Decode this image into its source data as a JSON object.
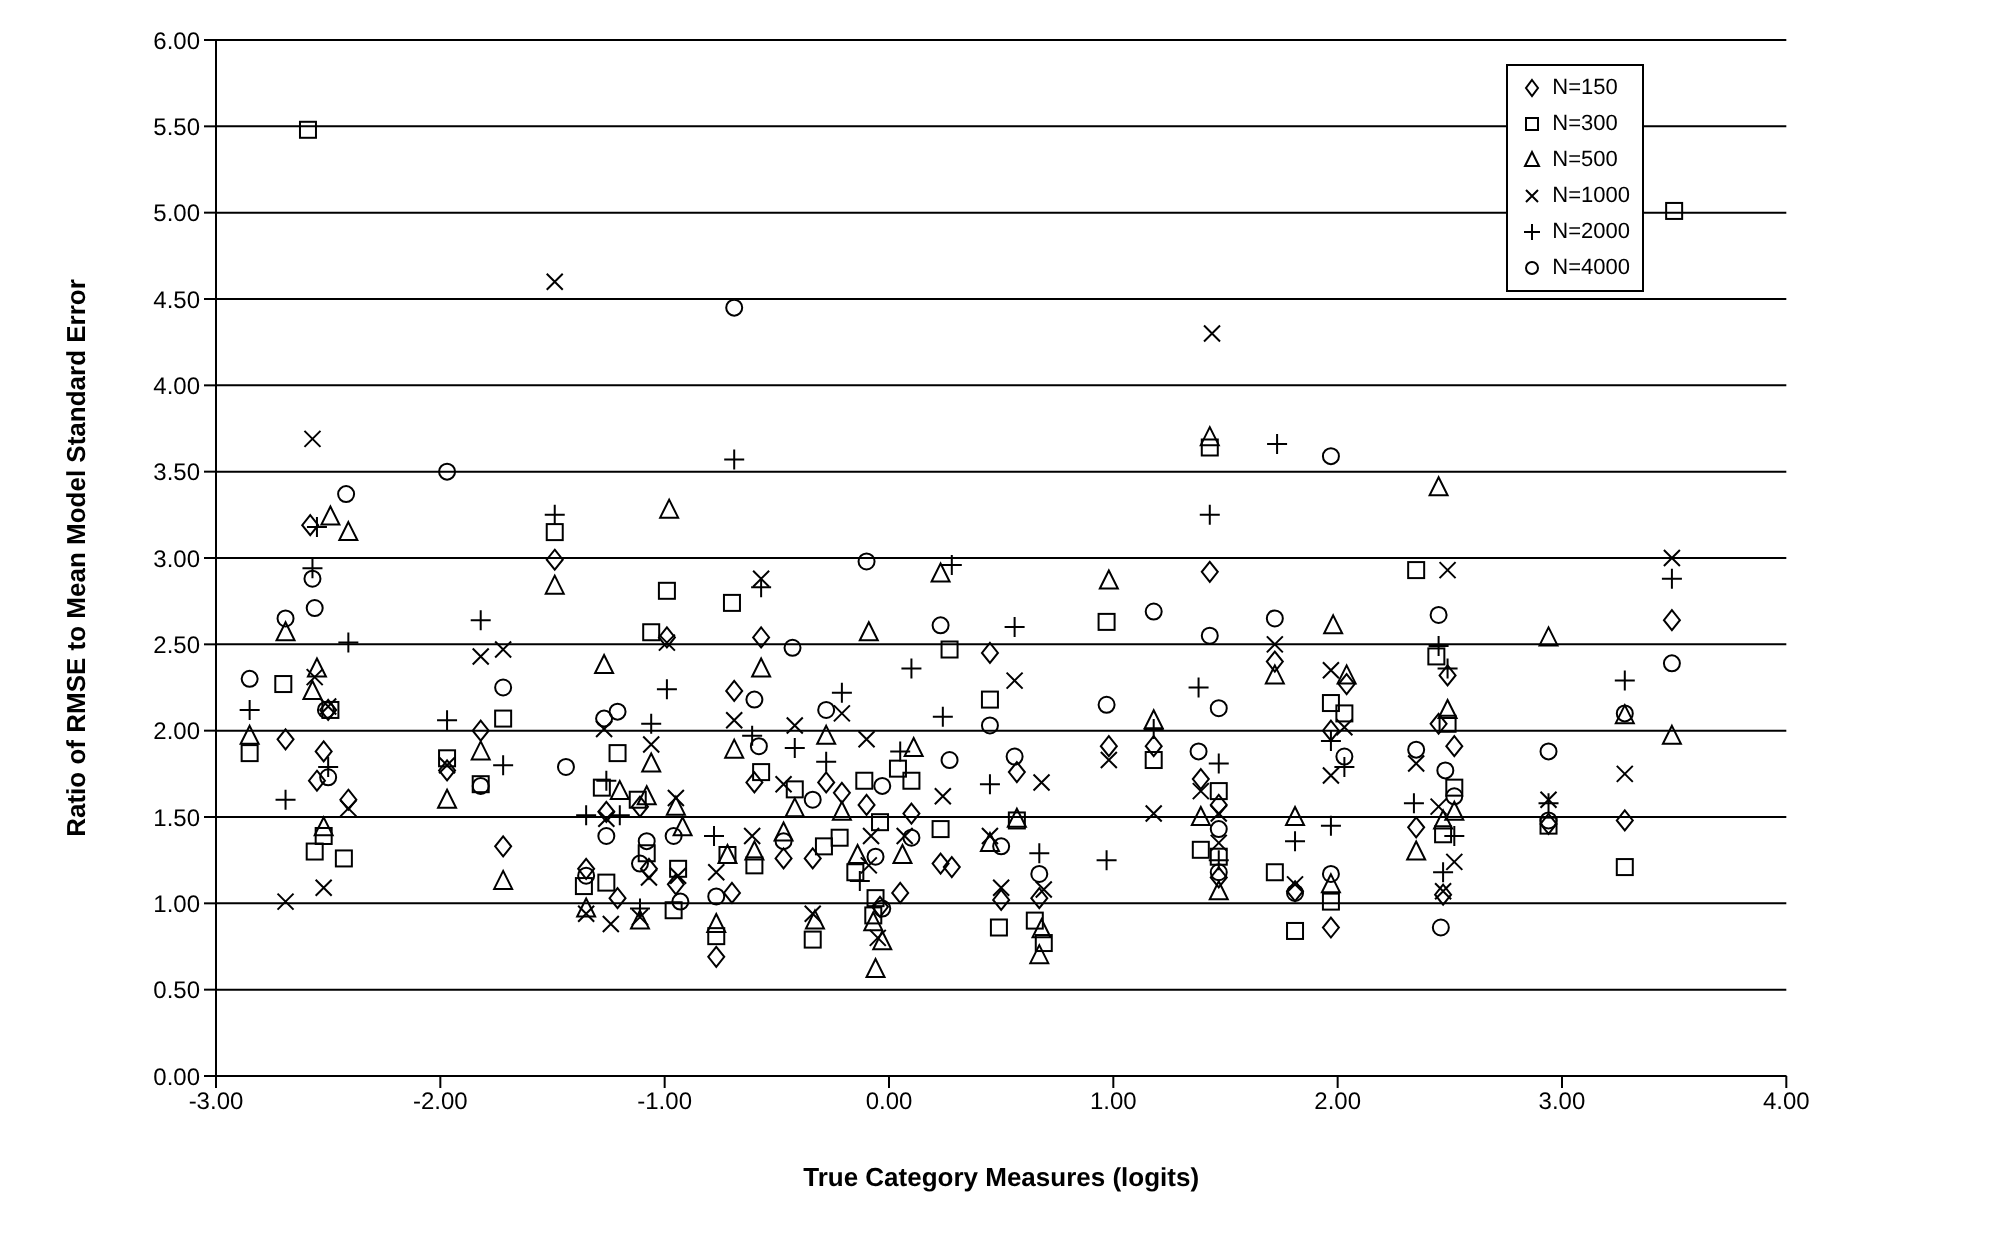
{
  "chart_data": {
    "type": "scatter",
    "xlabel": "True Category Measures (logits)",
    "ylabel": "Ratio of RMSE to Mean Model Standard Error",
    "xlim": [
      -3,
      4
    ],
    "xticks": [
      {
        "value": -3,
        "label": "-3.00"
      },
      {
        "value": -2,
        "label": "-2.00"
      },
      {
        "value": -1,
        "label": "-1.00"
      },
      {
        "value": 0,
        "label": "0.00"
      },
      {
        "value": 1,
        "label": "1.00"
      },
      {
        "value": 2,
        "label": "2.00"
      },
      {
        "value": 3,
        "label": "3.00"
      },
      {
        "value": 4,
        "label": "4.00"
      }
    ],
    "ylim": [
      0,
      6
    ],
    "yticks": [
      {
        "value": 0,
        "label": "0.00"
      },
      {
        "value": 0.5,
        "label": "0.50"
      },
      {
        "value": 1,
        "label": "1.00"
      },
      {
        "value": 1.5,
        "label": "1.50"
      },
      {
        "value": 2,
        "label": "2.00"
      },
      {
        "value": 2.5,
        "label": "2.50"
      },
      {
        "value": 3,
        "label": "3.00"
      },
      {
        "value": 3.5,
        "label": "3.50"
      },
      {
        "value": 4,
        "label": "4.00"
      },
      {
        "value": 4.5,
        "label": "4.50"
      },
      {
        "value": 5,
        "label": "5.00"
      },
      {
        "value": 5.5,
        "label": "5.50"
      },
      {
        "value": 6,
        "label": "6.00"
      }
    ],
    "grid": "y",
    "legend": "top right",
    "series": [
      {
        "name": "N=150",
        "color": "#000000",
        "marker": "diamond",
        "x": [
          -2.58,
          -1.49,
          -0.99,
          -1.82,
          -1.97,
          -2.5,
          -2.69,
          -2.52,
          -2.55,
          -2.41,
          -1.26,
          -1.11,
          -1.07,
          -1.35,
          -1.21,
          -0.95,
          -1.72,
          -0.57,
          0.45,
          -0.69,
          -0.6,
          -0.28,
          -0.21,
          -0.1,
          0.1,
          0.05,
          0.23,
          0.28,
          0.5,
          -0.47,
          -0.7,
          -0.77,
          -0.34,
          -0.04,
          0.57,
          0.67,
          1.43,
          1.72,
          0.98,
          1.18,
          1.39,
          1.47,
          1.47,
          1.81,
          2.49,
          2.04,
          1.97,
          1.97,
          2.35,
          2.45,
          2.52,
          2.47,
          2.94,
          3.28,
          3.49
        ],
        "values": [
          3.19,
          2.99,
          2.54,
          2.0,
          1.77,
          2.12,
          1.95,
          1.88,
          1.71,
          1.6,
          1.53,
          1.56,
          1.2,
          1.2,
          1.03,
          1.11,
          1.33,
          2.54,
          2.45,
          2.23,
          1.7,
          1.7,
          1.64,
          1.57,
          1.52,
          1.06,
          1.23,
          1.21,
          1.02,
          1.26,
          1.06,
          0.69,
          1.26,
          0.98,
          1.76,
          1.03,
          2.92,
          2.4,
          1.91,
          1.91,
          1.72,
          1.57,
          1.15,
          1.07,
          2.32,
          2.27,
          2.0,
          0.86,
          1.44,
          2.04,
          1.91,
          1.05,
          1.46,
          1.48,
          2.64
        ]
      },
      {
        "name": "N=300",
        "color": "#000000",
        "marker": "square",
        "x": [
          -2.85,
          -2.7,
          -2.59,
          -2.49,
          -2.52,
          -2.56,
          -2.43,
          -1.97,
          -1.82,
          -1.72,
          -1.49,
          -1.28,
          -1.21,
          -1.36,
          -1.26,
          -1.12,
          -1.08,
          -1.06,
          -0.99,
          -0.94,
          -0.96,
          -0.7,
          -0.57,
          -0.42,
          -0.11,
          -0.04,
          0.27,
          0.04,
          0.1,
          0.23,
          0.45,
          0.49,
          -0.72,
          -0.6,
          -0.77,
          -0.29,
          -0.34,
          -0.22,
          -0.15,
          -0.06,
          -0.07,
          0.57,
          0.65,
          0.69,
          1.43,
          0.97,
          1.18,
          1.47,
          1.39,
          1.47,
          1.72,
          1.81,
          2.35,
          2.44,
          1.97,
          2.03,
          1.97,
          2.49,
          2.52,
          2.47,
          2.94,
          3.28,
          3.5
        ],
        "values": [
          1.87,
          2.27,
          5.48,
          2.12,
          1.39,
          1.3,
          1.26,
          1.84,
          1.69,
          2.07,
          3.15,
          1.67,
          1.87,
          1.1,
          1.12,
          1.6,
          1.29,
          2.57,
          2.81,
          1.2,
          0.96,
          2.74,
          1.76,
          1.66,
          1.71,
          1.47,
          2.47,
          1.78,
          1.71,
          1.43,
          2.18,
          0.86,
          1.28,
          1.22,
          0.81,
          1.33,
          0.79,
          1.38,
          1.18,
          1.03,
          0.93,
          1.48,
          0.9,
          0.77,
          3.64,
          2.63,
          1.83,
          1.65,
          1.31,
          1.27,
          1.18,
          0.84,
          2.93,
          2.43,
          2.16,
          2.1,
          1.01,
          2.04,
          1.67,
          1.4,
          1.45,
          1.21,
          5.01
        ]
      },
      {
        "name": "N=500",
        "color": "#000000",
        "marker": "triangle",
        "x": [
          -2.85,
          -2.69,
          -2.49,
          -2.41,
          -2.55,
          -2.57,
          -2.52,
          -1.49,
          -0.98,
          -1.27,
          -1.82,
          -1.97,
          -1.72,
          -1.06,
          -1.2,
          -1.08,
          -0.95,
          -0.92,
          -1.35,
          -1.11,
          0.23,
          -0.09,
          -0.57,
          -0.69,
          -0.28,
          -0.42,
          -0.21,
          0.11,
          0.06,
          0.45,
          -0.72,
          -0.6,
          -0.47,
          -0.77,
          -0.33,
          -0.14,
          -0.07,
          -0.06,
          -0.03,
          0.57,
          0.68,
          0.67,
          1.43,
          0.98,
          1.72,
          1.18,
          1.39,
          1.47,
          1.81,
          2.45,
          1.98,
          2.04,
          1.97,
          2.35,
          2.49,
          2.52,
          2.47,
          2.94,
          3.28,
          3.49
        ],
        "values": [
          1.97,
          2.57,
          3.24,
          3.15,
          2.36,
          2.23,
          1.44,
          2.84,
          3.28,
          2.38,
          1.88,
          1.6,
          1.13,
          1.81,
          1.65,
          1.62,
          1.56,
          1.44,
          0.97,
          0.9,
          2.91,
          2.57,
          2.36,
          1.89,
          1.97,
          1.55,
          1.53,
          1.9,
          1.28,
          1.35,
          1.28,
          1.3,
          1.41,
          0.88,
          0.9,
          1.28,
          0.89,
          0.62,
          0.78,
          1.49,
          0.85,
          0.7,
          3.7,
          2.87,
          2.32,
          2.06,
          1.5,
          1.07,
          1.5,
          3.41,
          2.61,
          2.32,
          1.11,
          1.3,
          2.12,
          1.53,
          1.48,
          2.54,
          2.09,
          1.97
        ]
      },
      {
        "name": "N=1000",
        "color": "#000000",
        "marker": "cross",
        "x": [
          -2.57,
          -1.49,
          -1.82,
          -1.72,
          -0.99,
          -2.56,
          -2.5,
          -2.41,
          -2.52,
          -2.69,
          -1.97,
          -1.27,
          -1.06,
          -1.26,
          -0.95,
          -1.07,
          -1.35,
          -1.24,
          -1.11,
          -0.94,
          -0.57,
          0.56,
          -0.69,
          -0.42,
          -0.21,
          -0.1,
          -0.47,
          -0.08,
          0.07,
          0.24,
          0.45,
          0.5,
          -0.61,
          -0.77,
          -0.34,
          -0.09,
          -0.05,
          0.68,
          0.69,
          1.44,
          1.72,
          0.98,
          1.18,
          1.39,
          1.47,
          1.47,
          1.81,
          2.49,
          1.97,
          2.03,
          1.97,
          2.35,
          2.45,
          2.52,
          2.47,
          2.94,
          3.28,
          3.49
        ],
        "values": [
          3.69,
          4.6,
          2.43,
          2.47,
          2.51,
          2.31,
          2.14,
          1.55,
          1.09,
          1.01,
          1.8,
          2.01,
          1.92,
          1.49,
          1.61,
          1.15,
          0.94,
          0.88,
          0.92,
          1.16,
          2.88,
          2.29,
          2.06,
          2.03,
          2.1,
          1.95,
          1.69,
          1.39,
          1.39,
          1.62,
          1.39,
          1.09,
          1.39,
          1.18,
          0.94,
          1.22,
          0.8,
          1.7,
          1.08,
          4.3,
          2.5,
          1.83,
          1.52,
          1.65,
          1.52,
          1.35,
          1.11,
          2.93,
          2.35,
          2.02,
          1.74,
          1.81,
          1.56,
          1.24,
          1.07,
          1.6,
          1.75,
          3.0
        ]
      },
      {
        "name": "N=2000",
        "color": "#000000",
        "marker": "plus",
        "x": [
          -2.85,
          -2.55,
          -1.49,
          -2.57,
          -2.41,
          -1.82,
          -0.99,
          -1.97,
          -1.72,
          -2.5,
          -2.69,
          -1.06,
          -1.26,
          -1.35,
          -1.2,
          -1.11,
          -0.69,
          -0.57,
          0.28,
          0.1,
          0.56,
          -0.61,
          -0.42,
          -0.21,
          -0.28,
          0.05,
          0.45,
          0.24,
          -0.78,
          -0.13,
          0.67,
          1.73,
          1.43,
          1.38,
          1.18,
          0.97,
          1.47,
          1.47,
          1.81,
          2.45,
          2.49,
          1.97,
          2.03,
          1.97,
          2.34,
          2.52,
          2.47,
          2.94,
          3.28,
          3.49
        ],
        "values": [
          2.12,
          3.18,
          3.25,
          2.94,
          2.51,
          2.64,
          2.24,
          2.06,
          1.8,
          1.79,
          1.6,
          2.04,
          1.71,
          1.51,
          1.51,
          0.97,
          3.57,
          2.83,
          2.96,
          2.36,
          2.6,
          1.97,
          1.9,
          2.22,
          1.82,
          1.88,
          1.69,
          2.08,
          1.39,
          1.13,
          1.29,
          3.66,
          3.25,
          2.25,
          2.01,
          1.25,
          1.81,
          1.25,
          1.36,
          2.49,
          2.36,
          1.94,
          1.79,
          1.45,
          1.58,
          1.39,
          1.18,
          1.58,
          2.29,
          2.88
        ]
      },
      {
        "name": "N=4000",
        "color": "#000000",
        "marker": "circle",
        "x": [
          -2.85,
          -1.97,
          -2.42,
          -2.57,
          -2.69,
          -2.56,
          -1.72,
          -1.82,
          -1.44,
          -2.51,
          -2.5,
          -1.27,
          -1.21,
          -1.26,
          -0.96,
          -1.08,
          -1.11,
          -1.35,
          -0.93,
          -0.69,
          -0.1,
          -0.43,
          0.23,
          -0.6,
          -0.58,
          -0.28,
          -0.34,
          -0.03,
          0.1,
          0.27,
          0.45,
          0.5,
          0.56,
          -0.47,
          -0.77,
          -0.06,
          -0.03,
          0.67,
          1.18,
          1.43,
          1.72,
          1.47,
          0.97,
          1.38,
          1.47,
          1.47,
          1.81,
          1.97,
          2.45,
          2.03,
          1.97,
          2.35,
          2.48,
          2.52,
          2.46,
          2.94,
          2.94,
          3.28,
          3.49
        ],
        "values": [
          2.3,
          3.5,
          3.37,
          2.88,
          2.65,
          2.71,
          2.25,
          1.68,
          1.79,
          2.12,
          1.73,
          2.07,
          2.11,
          1.39,
          1.39,
          1.36,
          1.23,
          1.16,
          1.01,
          4.45,
          2.98,
          2.48,
          2.61,
          2.18,
          1.91,
          2.12,
          1.6,
          1.68,
          1.38,
          1.83,
          2.03,
          1.33,
          1.85,
          1.36,
          1.04,
          1.27,
          0.97,
          1.17,
          2.69,
          2.55,
          2.65,
          2.13,
          2.15,
          1.88,
          1.43,
          1.18,
          1.06,
          3.59,
          2.67,
          1.85,
          1.17,
          1.89,
          1.77,
          1.62,
          0.86,
          1.88,
          1.48,
          2.1,
          2.39
        ]
      }
    ]
  }
}
